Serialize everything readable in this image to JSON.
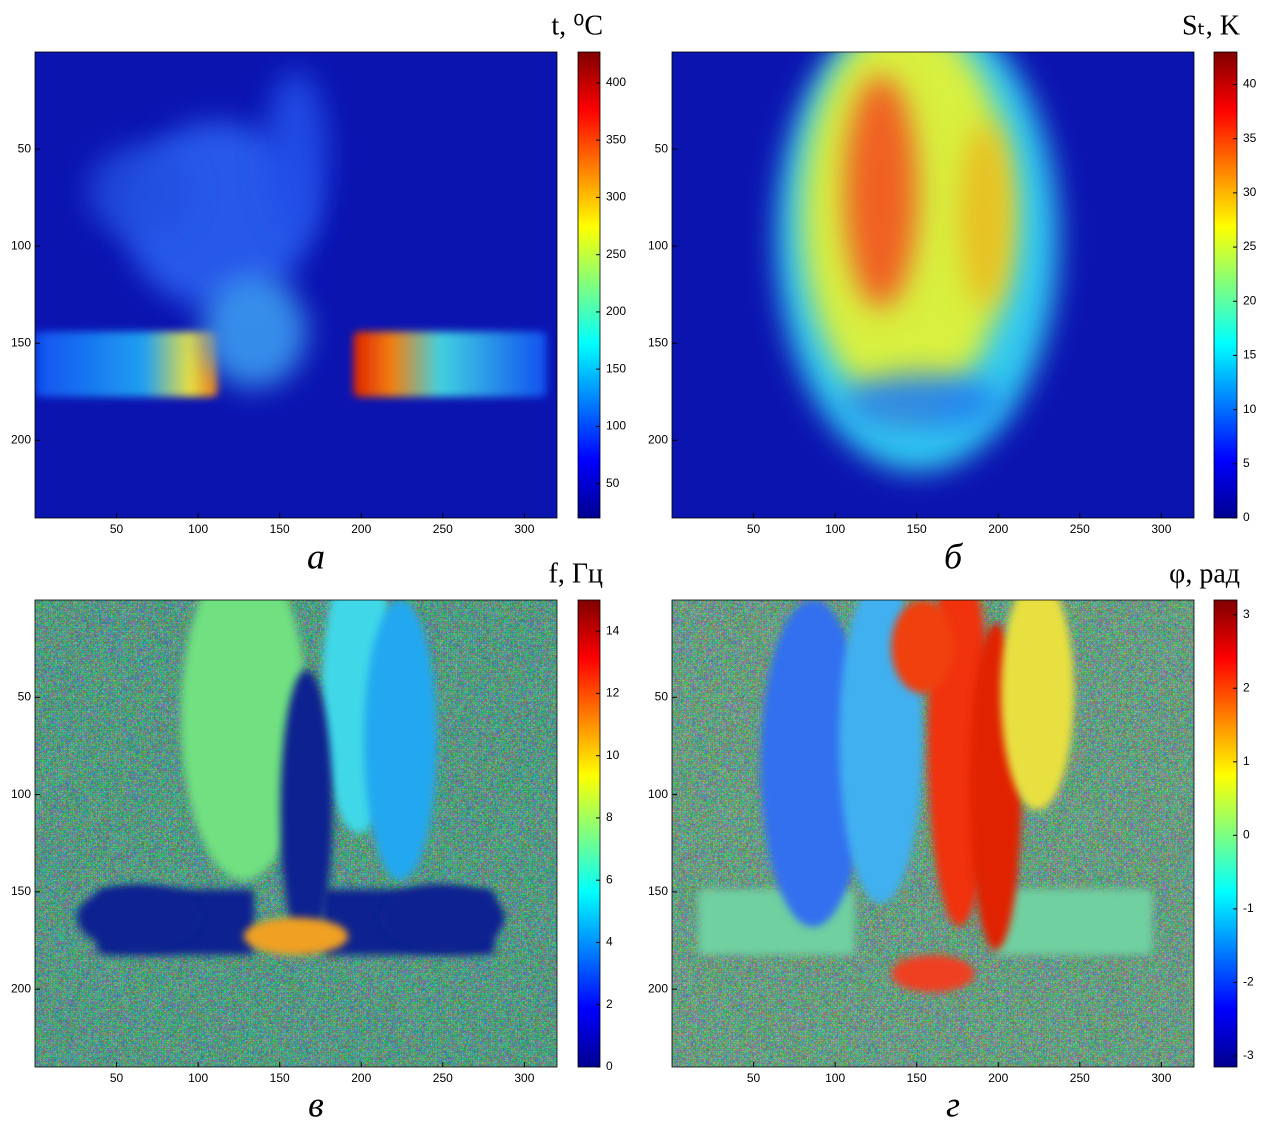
{
  "chart_data": [
    {
      "type": "heatmap",
      "colorbar_label": "t, ⁰C",
      "caption": "а",
      "xlim": [
        0,
        320
      ],
      "ylim": [
        240,
        0
      ],
      "xticks": [
        50,
        100,
        150,
        200,
        250,
        300
      ],
      "yticks": [
        50,
        100,
        150,
        200
      ],
      "clim": [
        20,
        427
      ],
      "cticks": [
        50,
        100,
        150,
        200,
        250,
        300,
        350,
        400
      ]
    },
    {
      "type": "heatmap",
      "colorbar_label": "Sₜ, K",
      "caption": "б",
      "xlim": [
        0,
        320
      ],
      "ylim": [
        240,
        0
      ],
      "xticks": [
        50,
        100,
        150,
        200,
        250,
        300
      ],
      "yticks": [
        50,
        100,
        150,
        200
      ],
      "clim": [
        0,
        43
      ],
      "cticks": [
        0,
        5,
        10,
        15,
        20,
        25,
        30,
        35,
        40
      ]
    },
    {
      "type": "heatmap",
      "colorbar_label": "f, Гц",
      "caption": "в",
      "xlim": [
        0,
        320
      ],
      "ylim": [
        240,
        0
      ],
      "xticks": [
        50,
        100,
        150,
        200,
        250,
        300
      ],
      "yticks": [
        50,
        100,
        150,
        200
      ],
      "clim": [
        0,
        15
      ],
      "cticks": [
        0,
        2,
        4,
        6,
        8,
        10,
        12,
        14
      ]
    },
    {
      "type": "heatmap",
      "colorbar_label": "φ, рад",
      "caption": "г",
      "xlim": [
        0,
        320
      ],
      "ylim": [
        240,
        0
      ],
      "xticks": [
        50,
        100,
        150,
        200,
        250,
        300
      ],
      "yticks": [
        50,
        100,
        150,
        200
      ],
      "clim": [
        -3.15,
        3.2
      ],
      "cticks": [
        -3,
        -2,
        -1,
        0,
        1,
        2,
        3
      ]
    }
  ]
}
